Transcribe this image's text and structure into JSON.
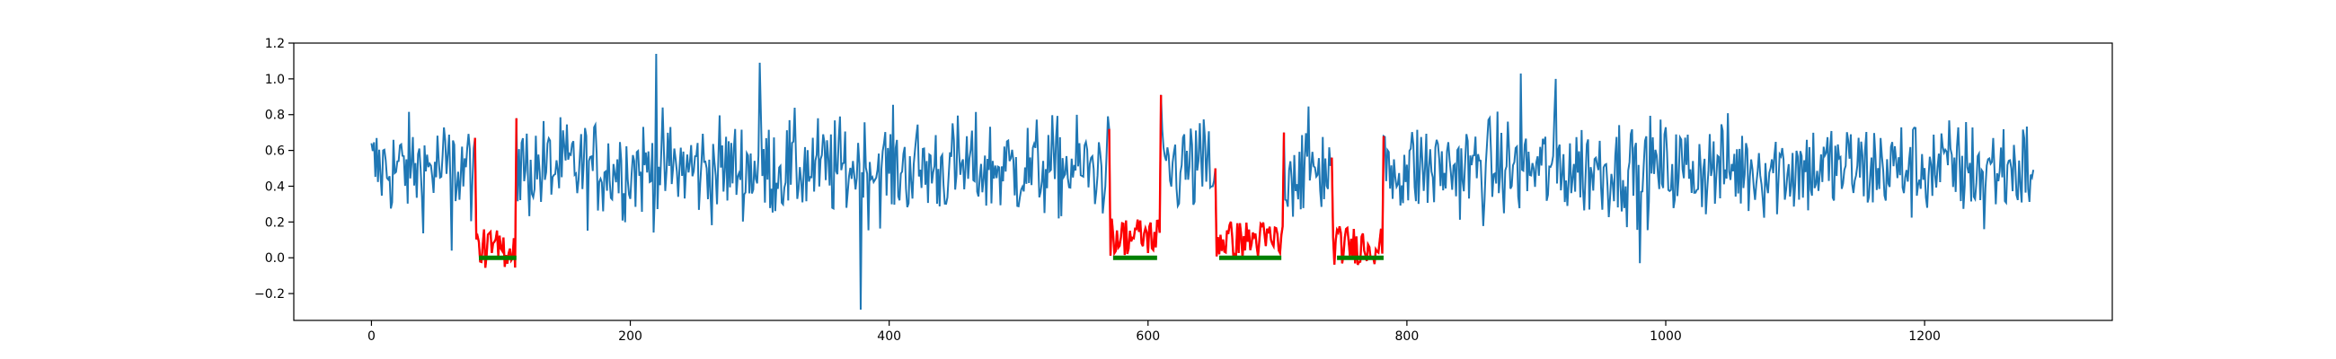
{
  "chart_data": {
    "type": "line",
    "title": "",
    "xlabel": "",
    "ylabel": "",
    "xlim": [
      -60,
      1345
    ],
    "ylim": [
      -0.35,
      1.2
    ],
    "xticks": [
      0,
      200,
      400,
      600,
      800,
      1000,
      1200
    ],
    "yticks": [
      -0.2,
      0.0,
      0.2,
      0.4,
      0.6,
      0.8,
      1.0,
      1.2
    ],
    "xtick_labels": [
      "0",
      "200",
      "400",
      "600",
      "800",
      "1000",
      "1200"
    ],
    "ytick_labels": [
      "−0.2",
      "0.0",
      "0.2",
      "0.4",
      "0.6",
      "0.8",
      "1.0",
      "1.2"
    ],
    "grid": false,
    "legend": "none",
    "n_points": 1285,
    "series": [
      {
        "role": "signal",
        "color": "#1f77b4",
        "x_range": [
          0,
          1284
        ],
        "baseline": 0.5,
        "spread": 0.14,
        "notable_points": [
          {
            "x": 62,
            "y": 0.04
          },
          {
            "x": 220,
            "y": 1.14
          },
          {
            "x": 300,
            "y": 1.09
          },
          {
            "x": 378,
            "y": -0.29
          },
          {
            "x": 600,
            "y": 1.04
          },
          {
            "x": 888,
            "y": 1.03
          },
          {
            "x": 915,
            "y": 1.0
          },
          {
            "x": 980,
            "y": -0.03
          },
          {
            "x": 1246,
            "y": 0.16
          }
        ]
      },
      {
        "role": "anomaly-segments",
        "color": "#ff0000",
        "segments": [
          {
            "x_start": 80,
            "x_end": 112,
            "level": 0.05,
            "start_value": 0.67,
            "end_value": 0.78
          },
          {
            "x_start": 570,
            "x_end": 610,
            "level": 0.12,
            "start_value": 0.72,
            "end_value": 0.91
          },
          {
            "x_start": 652,
            "x_end": 705,
            "level": 0.1,
            "start_value": 0.5,
            "end_value": 0.7
          },
          {
            "x_start": 742,
            "x_end": 782,
            "level": 0.07,
            "start_value": 0.56,
            "end_value": 0.68
          }
        ]
      },
      {
        "role": "ground-truth-markers",
        "color": "#008000",
        "y": 0.0,
        "ranges": [
          [
            83,
            112
          ],
          [
            573,
            607
          ],
          [
            655,
            703
          ],
          [
            746,
            782
          ]
        ]
      }
    ]
  }
}
